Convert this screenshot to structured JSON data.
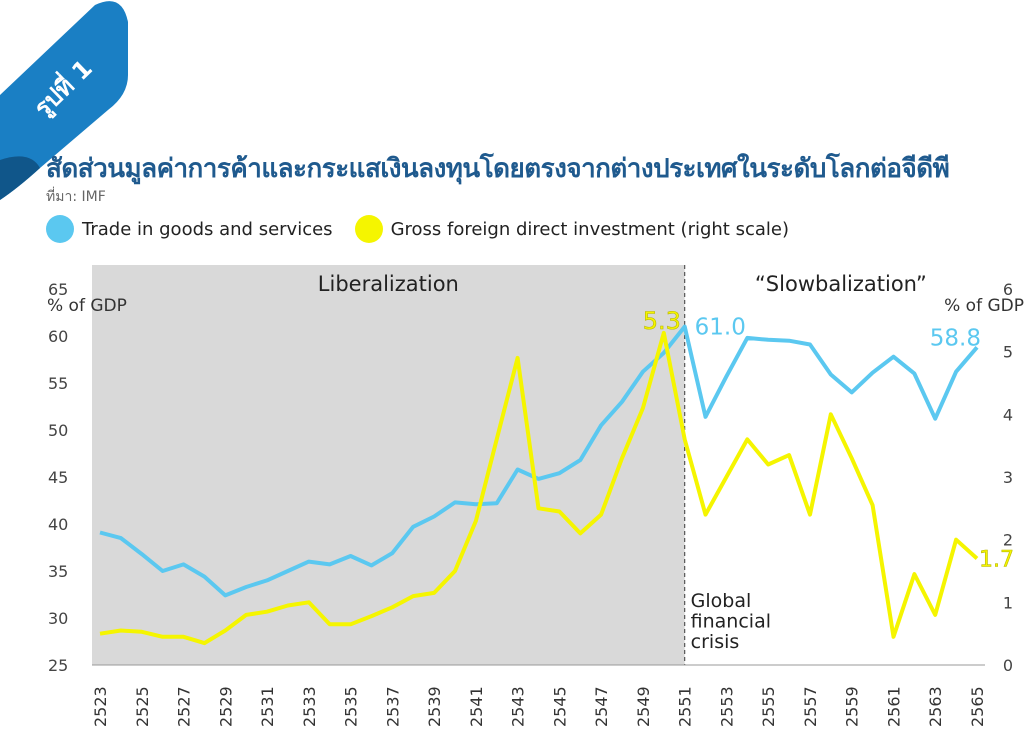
{
  "figure": {
    "badge_label": "รูปที่ 1",
    "title": "สัดส่วนมูลค่าการค้าและกระแสเงินลงทุนโดยตรงจากต่างประเทศในระดับโลกต่อจีดีพี",
    "source": "ที่มา: IMF"
  },
  "colors": {
    "trade": "#5bc8f0",
    "fdi": "#f5f500",
    "title": "#1f5a8e",
    "shade": "#d9d9d9",
    "ribbon": "#1a7fc4"
  },
  "chart_data": {
    "type": "line",
    "legend": {
      "position": "top-left",
      "entries": [
        "Trade in goods and services",
        "Gross foreign direct investment (right scale)"
      ]
    },
    "x": [
      2523,
      2524,
      2525,
      2526,
      2527,
      2528,
      2529,
      2530,
      2531,
      2532,
      2533,
      2534,
      2535,
      2536,
      2537,
      2538,
      2539,
      2540,
      2541,
      2542,
      2543,
      2544,
      2545,
      2546,
      2547,
      2548,
      2549,
      2550,
      2551,
      2552,
      2553,
      2554,
      2555,
      2556,
      2557,
      2558,
      2559,
      2560,
      2561,
      2562,
      2563,
      2564,
      2565
    ],
    "x_tick_labels": [
      "2523",
      "2525",
      "2527",
      "2529",
      "2531",
      "2533",
      "2535",
      "2537",
      "2539",
      "2541",
      "2543",
      "2545",
      "2547",
      "2549",
      "2551",
      "2553",
      "2555",
      "2557",
      "2559",
      "2561",
      "2563",
      "2565"
    ],
    "series": [
      {
        "name": "Trade in goods and services",
        "axis": "left",
        "color": "#5bc8f0",
        "values": [
          39.1,
          38.5,
          36.8,
          35.0,
          35.7,
          34.4,
          32.4,
          33.3,
          34.0,
          35.0,
          36.0,
          35.7,
          36.6,
          35.6,
          36.9,
          39.7,
          40.8,
          42.3,
          42.1,
          42.2,
          45.8,
          44.8,
          45.4,
          46.8,
          50.5,
          53.0,
          56.2,
          58.2,
          61.0,
          51.4,
          55.7,
          59.8,
          59.6,
          59.5,
          59.1,
          55.9,
          54.0,
          56.1,
          57.8,
          56.0,
          51.2,
          56.2,
          58.8
        ]
      },
      {
        "name": "Gross foreign direct investment (right scale)",
        "axis": "right",
        "color": "#f5f500",
        "values": [
          0.5,
          0.55,
          0.53,
          0.45,
          0.45,
          0.35,
          0.55,
          0.8,
          0.85,
          0.95,
          1.0,
          0.65,
          0.65,
          0.78,
          0.92,
          1.1,
          1.15,
          1.5,
          2.3,
          3.6,
          4.9,
          2.5,
          2.45,
          2.1,
          2.4,
          3.3,
          4.1,
          5.3,
          3.6,
          2.4,
          3.0,
          3.6,
          3.2,
          3.35,
          2.4,
          4.0,
          3.3,
          2.55,
          0.45,
          1.45,
          0.8,
          2.0,
          1.7
        ]
      }
    ],
    "y_left": {
      "label": "% of GDP",
      "range": [
        25,
        65
      ],
      "ticks": [
        25,
        30,
        35,
        40,
        45,
        50,
        55,
        60,
        65
      ]
    },
    "y_right": {
      "label": "% of GDP",
      "range": [
        0,
        6
      ],
      "ticks": [
        0,
        1,
        2,
        3,
        4,
        5,
        6
      ]
    },
    "regions": [
      {
        "label": "Liberalization",
        "from": 2523,
        "to": 2551,
        "shaded": true
      },
      {
        "label": "“Slowbalization”",
        "from": 2551,
        "to": 2565,
        "shaded": false
      }
    ],
    "annotations": {
      "crisis": {
        "x": 2551,
        "lines": [
          "Global",
          "financial",
          "crisis"
        ]
      },
      "fdi_peak": {
        "x": 2550,
        "value": 5.3,
        "label": "5.3"
      },
      "trade_peak": {
        "x": 2551,
        "value": 61.0,
        "label": "61.0"
      },
      "trade_last": {
        "x": 2565,
        "value": 58.8,
        "label": "58.8"
      },
      "fdi_last": {
        "x": 2565,
        "value": 1.7,
        "label": "1.7"
      }
    },
    "grid": false
  }
}
